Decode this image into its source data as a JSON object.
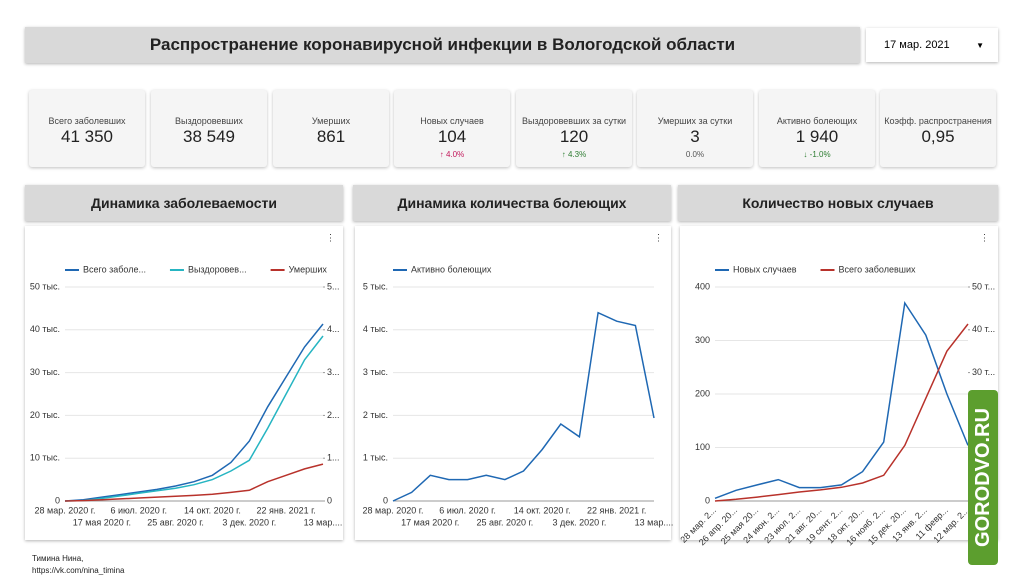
{
  "header": {
    "title": "Распространение коронавирусной инфекции в Вологодской области",
    "date": "17 мар. 2021"
  },
  "kpis": [
    {
      "label": "Всего заболевших",
      "value": "41 350"
    },
    {
      "label": "Выздоровевших",
      "value": "38 549"
    },
    {
      "label": "Умерших",
      "value": "861"
    },
    {
      "label": "Новых случаев",
      "value": "104",
      "delta": "4.0%"
    },
    {
      "label": "Выздоровевших за сутки",
      "value": "120",
      "delta": "4.3%"
    },
    {
      "label": "Умерших за сутки",
      "value": "3",
      "delta": "0.0%"
    },
    {
      "label": "Активно болеющих",
      "value": "1 940",
      "delta": "-1.0%"
    },
    {
      "label": "Коэфф. распространения",
      "value": "0,95"
    }
  ],
  "chart_data": [
    {
      "type": "line",
      "title": "Динамика заболеваемости",
      "categories": [
        "28 мар. 2020 г.",
        null,
        "17 мая 2020 г.",
        null,
        "6 июл. 2020 г.",
        null,
        "25 авг. 2020 г.",
        null,
        "14 окт. 2020 г.",
        null,
        "3 дек. 2020 г.",
        null,
        "22 янв. 2021 г.",
        null,
        "13 мар...."
      ],
      "series": [
        {
          "name": "Всего заболе...",
          "color": "#1f68b3",
          "values": [
            0,
            300,
            900,
            1500,
            2100,
            2700,
            3500,
            4500,
            6000,
            9000,
            14000,
            22000,
            29000,
            36000,
            41350
          ]
        },
        {
          "name": "Выздоровев...",
          "color": "#26b5c2",
          "values": [
            0,
            100,
            600,
            1200,
            1800,
            2400,
            3000,
            3800,
            5000,
            7000,
            9500,
            17000,
            25000,
            33000,
            38549
          ]
        },
        {
          "name": "Умерших",
          "color": "#b8322b",
          "axis": "y2",
          "values": [
            0,
            10,
            30,
            50,
            70,
            90,
            110,
            130,
            160,
            200,
            250,
            450,
            600,
            750,
            861
          ]
        }
      ],
      "ylim": [
        0,
        50000
      ],
      "yticks": [
        0,
        {
          "value": 10000,
          "label": "10 тыс."
        },
        {
          "value": 20000,
          "label": "20 тыс."
        },
        {
          "value": 30000,
          "label": "30 тыс."
        },
        {
          "value": 40000,
          "label": "40 тыс."
        },
        {
          "value": 50000,
          "label": "50 тыс."
        }
      ],
      "y2lim": [
        0,
        5000
      ],
      "y2ticks": [
        0,
        {
          "value": 1000,
          "label": "1..."
        },
        {
          "value": 2000,
          "label": "2..."
        },
        {
          "value": 3000,
          "label": "3..."
        },
        {
          "value": 4000,
          "label": "4..."
        },
        {
          "value": 5000,
          "label": "5..."
        }
      ],
      "grid": true
    },
    {
      "type": "line",
      "title": "Динамика количества болеющих",
      "categories": [
        "28 мар. 2020 г.",
        null,
        "17 мая 2020 г.",
        null,
        "6 июл. 2020 г.",
        null,
        "25 авг. 2020 г.",
        null,
        "14 окт. 2020 г.",
        null,
        "3 дек. 2020 г.",
        null,
        "22 янв. 2021 г.",
        null,
        "13 мар...."
      ],
      "series": [
        {
          "name": "Активно болеющих",
          "color": "#1f68b3",
          "values": [
            0,
            200,
            600,
            500,
            500,
            600,
            500,
            700,
            1200,
            1800,
            1500,
            4400,
            4200,
            4100,
            1940
          ]
        }
      ],
      "ylim": [
        0,
        5000
      ],
      "yticks": [
        0,
        {
          "value": 1000,
          "label": "1 тыс."
        },
        {
          "value": 2000,
          "label": "2 тыс."
        },
        {
          "value": 3000,
          "label": "3 тыс."
        },
        {
          "value": 4000,
          "label": "4 тыс."
        },
        {
          "value": 5000,
          "label": "5 тыс."
        }
      ],
      "grid": true
    },
    {
      "type": "line",
      "title": "Количество новых случаев",
      "categories": [
        "28 мар. 2...",
        "26 апр. 20...",
        "25 мая 20...",
        "24 июн. 2...",
        "23 июл. 2...",
        "21 авг. 20...",
        "19 сент. 2...",
        "18 окт. 20...",
        "16 нояб. 2...",
        "15 дек. 20...",
        "13 янв. 2...",
        "11 февр...",
        "12 мар. 2..."
      ],
      "series": [
        {
          "name": "Новых случаев",
          "color": "#1f68b3",
          "values": [
            5,
            20,
            30,
            40,
            25,
            25,
            30,
            55,
            110,
            370,
            310,
            200,
            104
          ]
        },
        {
          "name": "Всего заболевших",
          "color": "#b8322b",
          "axis": "y2",
          "values": [
            0,
            400,
            900,
            1500,
            2100,
            2600,
            3200,
            4200,
            6000,
            13000,
            24000,
            35000,
            41350
          ]
        }
      ],
      "ylim": [
        0,
        400
      ],
      "yticks": [
        0,
        100,
        200,
        300,
        400
      ],
      "y2lim": [
        0,
        50000
      ],
      "y2ticks": [
        0,
        {
          "value": 10000,
          "label": "10 т..."
        },
        {
          "value": 20000,
          "label": "20 т..."
        },
        {
          "value": 30000,
          "label": "30 т..."
        },
        {
          "value": 40000,
          "label": "40 т..."
        },
        {
          "value": 50000,
          "label": "50 т..."
        }
      ],
      "grid": true
    }
  ],
  "footer": {
    "author": "Тимина Нина,",
    "link": "https://vk.com/nina_timina"
  },
  "watermark": "GORODVO.RU"
}
